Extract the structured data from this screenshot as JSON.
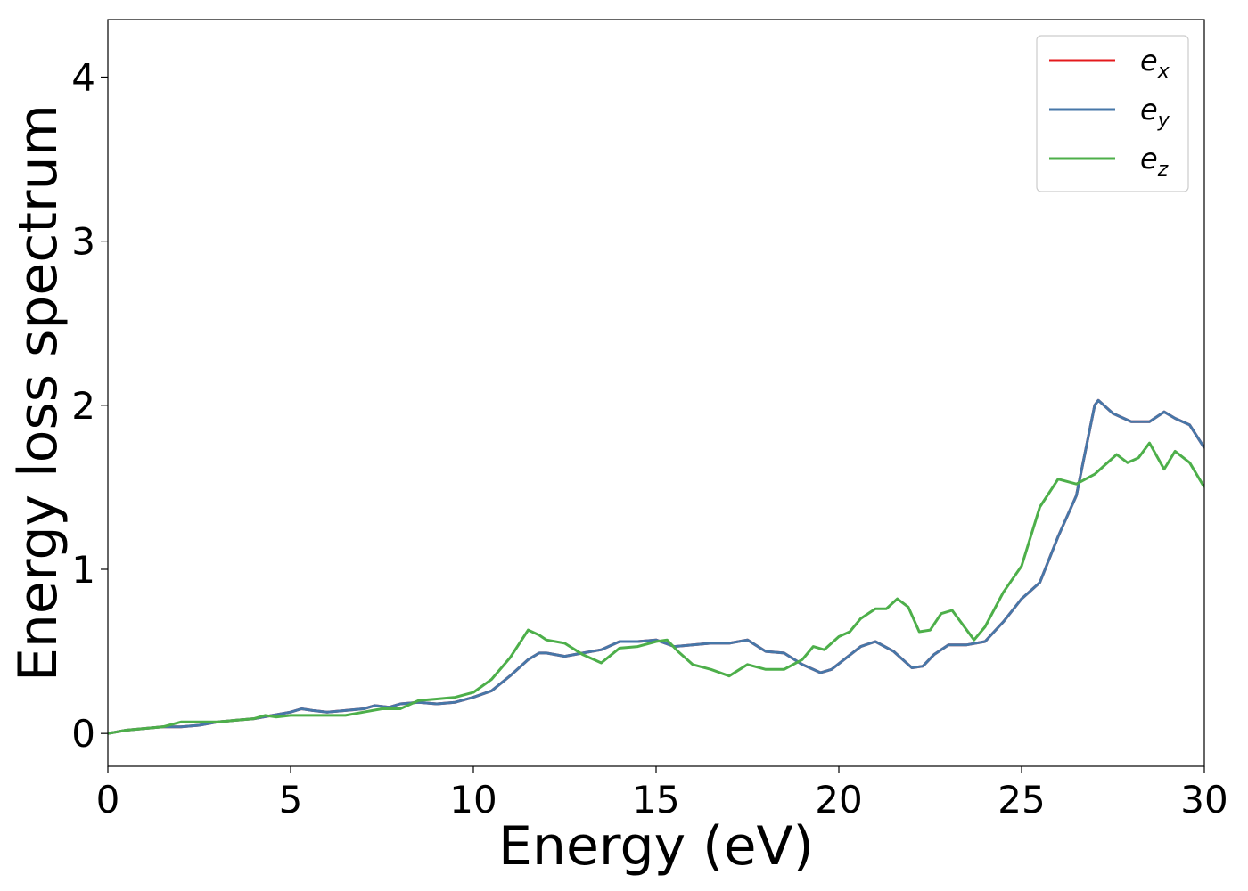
{
  "chart_data": {
    "type": "line",
    "xlabel": "Energy (eV)",
    "ylabel": "Energy loss spectrum",
    "xlim": [
      0,
      30
    ],
    "ylim": [
      -0.2,
      4.35
    ],
    "xticks": [
      0,
      5,
      10,
      15,
      20,
      25,
      30
    ],
    "yticks": [
      0,
      1,
      2,
      3,
      4
    ],
    "grid": false,
    "legend_position": "top-right",
    "series": [
      {
        "name": "e_x",
        "label_base": "e",
        "label_sub": "x",
        "color": "#e41a1c",
        "x": [
          0,
          0.5,
          1,
          1.5,
          2,
          2.5,
          3,
          3.5,
          4,
          4.5,
          5,
          5.3,
          5.6,
          6,
          6.5,
          7,
          7.3,
          7.7,
          8,
          8.5,
          9,
          9.5,
          10,
          10.5,
          11,
          11.5,
          11.8,
          12,
          12.5,
          13,
          13.5,
          14,
          14.5,
          15,
          15.5,
          16,
          16.5,
          17,
          17.5,
          18,
          18.5,
          19,
          19.5,
          19.8,
          20.2,
          20.6,
          21,
          21.5,
          22,
          22.3,
          22.6,
          23,
          23.5,
          24,
          24.5,
          25,
          25.5,
          26,
          26.5,
          27,
          27.1,
          27.5,
          28,
          28.5,
          28.9,
          29.2,
          29.6,
          30
        ],
        "y": [
          0.0,
          0.02,
          0.03,
          0.04,
          0.04,
          0.05,
          0.07,
          0.08,
          0.09,
          0.11,
          0.13,
          0.15,
          0.14,
          0.13,
          0.14,
          0.15,
          0.17,
          0.16,
          0.18,
          0.19,
          0.18,
          0.19,
          0.22,
          0.26,
          0.35,
          0.45,
          0.49,
          0.49,
          0.47,
          0.49,
          0.51,
          0.56,
          0.56,
          0.57,
          0.53,
          0.54,
          0.55,
          0.55,
          0.57,
          0.5,
          0.49,
          0.42,
          0.37,
          0.39,
          0.46,
          0.53,
          0.56,
          0.5,
          0.4,
          0.41,
          0.48,
          0.54,
          0.54,
          0.56,
          0.68,
          0.82,
          0.92,
          1.2,
          1.45,
          2.0,
          2.03,
          1.95,
          1.9,
          1.9,
          1.96,
          1.92,
          1.88,
          1.74
        ]
      },
      {
        "name": "e_y",
        "label_base": "e",
        "label_sub": "y",
        "color": "#4777a8",
        "x": [
          0,
          0.5,
          1,
          1.5,
          2,
          2.5,
          3,
          3.5,
          4,
          4.5,
          5,
          5.3,
          5.6,
          6,
          6.5,
          7,
          7.3,
          7.7,
          8,
          8.5,
          9,
          9.5,
          10,
          10.5,
          11,
          11.5,
          11.8,
          12,
          12.5,
          13,
          13.5,
          14,
          14.5,
          15,
          15.5,
          16,
          16.5,
          17,
          17.5,
          18,
          18.5,
          19,
          19.5,
          19.8,
          20.2,
          20.6,
          21,
          21.5,
          22,
          22.3,
          22.6,
          23,
          23.5,
          24,
          24.5,
          25,
          25.5,
          26,
          26.5,
          27,
          27.1,
          27.5,
          28,
          28.5,
          28.9,
          29.2,
          29.6,
          30
        ],
        "y": [
          0.0,
          0.02,
          0.03,
          0.04,
          0.04,
          0.05,
          0.07,
          0.08,
          0.09,
          0.11,
          0.13,
          0.15,
          0.14,
          0.13,
          0.14,
          0.15,
          0.17,
          0.16,
          0.18,
          0.19,
          0.18,
          0.19,
          0.22,
          0.26,
          0.35,
          0.45,
          0.49,
          0.49,
          0.47,
          0.49,
          0.51,
          0.56,
          0.56,
          0.57,
          0.53,
          0.54,
          0.55,
          0.55,
          0.57,
          0.5,
          0.49,
          0.42,
          0.37,
          0.39,
          0.46,
          0.53,
          0.56,
          0.5,
          0.4,
          0.41,
          0.48,
          0.54,
          0.54,
          0.56,
          0.68,
          0.82,
          0.92,
          1.2,
          1.45,
          2.0,
          2.03,
          1.95,
          1.9,
          1.9,
          1.96,
          1.92,
          1.88,
          1.74
        ]
      },
      {
        "name": "e_z",
        "label_base": "e",
        "label_sub": "z",
        "color": "#4daf4a",
        "x": [
          0,
          0.5,
          1,
          1.5,
          2,
          2.5,
          3,
          3.5,
          4,
          4.3,
          4.6,
          5,
          5.5,
          6,
          6.5,
          7,
          7.5,
          8,
          8.5,
          9,
          9.5,
          10,
          10.5,
          11,
          11.5,
          11.8,
          12,
          12.5,
          13,
          13.5,
          14,
          14.5,
          15,
          15.3,
          15.6,
          16,
          16.5,
          17,
          17.5,
          18,
          18.5,
          19,
          19.3,
          19.6,
          20,
          20.3,
          20.6,
          21,
          21.3,
          21.6,
          21.9,
          22.2,
          22.5,
          22.8,
          23.1,
          23.4,
          23.7,
          24,
          24.5,
          25,
          25.5,
          26,
          26.5,
          27,
          27.3,
          27.6,
          27.9,
          28.2,
          28.5,
          28.9,
          29.2,
          29.6,
          30
        ],
        "y": [
          0.0,
          0.02,
          0.03,
          0.04,
          0.07,
          0.07,
          0.07,
          0.08,
          0.09,
          0.11,
          0.1,
          0.11,
          0.11,
          0.11,
          0.11,
          0.13,
          0.15,
          0.15,
          0.2,
          0.21,
          0.22,
          0.25,
          0.33,
          0.46,
          0.63,
          0.6,
          0.57,
          0.55,
          0.48,
          0.43,
          0.52,
          0.53,
          0.56,
          0.57,
          0.5,
          0.42,
          0.39,
          0.35,
          0.42,
          0.39,
          0.39,
          0.45,
          0.53,
          0.51,
          0.59,
          0.62,
          0.7,
          0.76,
          0.76,
          0.82,
          0.77,
          0.62,
          0.63,
          0.73,
          0.75,
          0.66,
          0.57,
          0.65,
          0.86,
          1.02,
          1.38,
          1.55,
          1.52,
          1.58,
          1.64,
          1.7,
          1.65,
          1.68,
          1.77,
          1.61,
          1.72,
          1.65,
          1.5
        ]
      }
    ]
  }
}
